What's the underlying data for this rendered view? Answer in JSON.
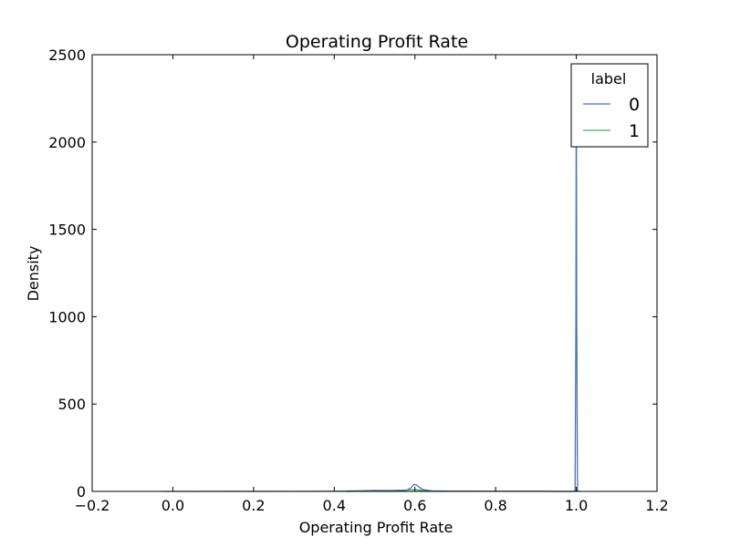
{
  "chart_data": {
    "type": "line",
    "title": "Operating Profit Rate",
    "xlabel": "Operating Profit Rate",
    "ylabel": "Density",
    "xlim": [
      -0.2,
      1.2
    ],
    "ylim": [
      0,
      2500
    ],
    "xticks": [
      -0.2,
      0.0,
      0.2,
      0.4,
      0.6,
      0.8,
      1.0,
      1.2
    ],
    "xtick_labels": [
      "−0.2",
      "0.0",
      "0.2",
      "0.4",
      "0.6",
      "0.8",
      "1.0",
      "1.2"
    ],
    "yticks": [
      0,
      500,
      1000,
      1500,
      2000,
      2500
    ],
    "ytick_labels": [
      "0",
      "500",
      "1000",
      "1500",
      "2000",
      "2500"
    ],
    "grid": false,
    "legend": {
      "title": "label",
      "placement": "top-right"
    },
    "series": [
      {
        "name": "0",
        "color": "#4c72b0",
        "points": [
          [
            0.43,
            0
          ],
          [
            0.46,
            1
          ],
          [
            0.48,
            3
          ],
          [
            0.5,
            5
          ],
          [
            0.52,
            4
          ],
          [
            0.54,
            3
          ],
          [
            0.56,
            5
          ],
          [
            0.58,
            7
          ],
          [
            0.59,
            20
          ],
          [
            0.598,
            40
          ],
          [
            0.603,
            37
          ],
          [
            0.61,
            25
          ],
          [
            0.62,
            10
          ],
          [
            0.64,
            3
          ],
          [
            0.7,
            1
          ],
          [
            0.8,
            0.5
          ],
          [
            0.92,
            0.5
          ],
          [
            0.96,
            0
          ],
          [
            0.997,
            0
          ],
          [
            0.999,
            1000
          ],
          [
            1.0,
            2450
          ],
          [
            1.001,
            1000
          ],
          [
            1.003,
            0
          ]
        ]
      },
      {
        "name": "1",
        "color": "#55a868",
        "points": [
          [
            -0.03,
            0
          ],
          [
            0.1,
            0.3
          ],
          [
            0.2,
            0.3
          ],
          [
            0.3,
            0.5
          ],
          [
            0.4,
            1
          ],
          [
            0.45,
            3
          ],
          [
            0.5,
            5
          ],
          [
            0.55,
            6
          ],
          [
            0.58,
            8
          ],
          [
            0.6,
            10
          ],
          [
            0.62,
            5
          ],
          [
            0.65,
            2
          ],
          [
            0.7,
            1
          ],
          [
            0.8,
            0.5
          ],
          [
            0.9,
            0.5
          ],
          [
            0.93,
            0
          ],
          [
            0.99,
            0
          ],
          [
            1.0,
            3
          ],
          [
            1.01,
            0
          ]
        ]
      }
    ]
  }
}
